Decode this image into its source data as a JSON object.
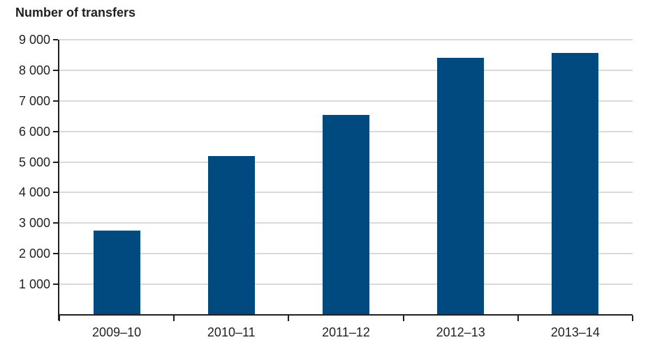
{
  "chart_data": {
    "type": "bar",
    "title": "Number of transfers",
    "categories": [
      "2009–10",
      "2010–11",
      "2011–12",
      "2012–13",
      "2013–14"
    ],
    "values": [
      2760,
      5190,
      6530,
      8410,
      8570
    ],
    "xlabel": "",
    "ylabel": "Number of transfers",
    "ylim": [
      0,
      9000
    ],
    "ytick_interval": 1000,
    "ytick_labels": [
      "1 000",
      "2 000",
      "3 000",
      "4 000",
      "5 000",
      "6 000",
      "7 000",
      "8 000",
      "9 000"
    ],
    "grid": true,
    "legend_position": "none",
    "colors": {
      "bar": "#004a80",
      "gridline": "#d9d9d9",
      "axis": "#231f20",
      "text": "#231f20",
      "background": "#ffffff"
    }
  }
}
